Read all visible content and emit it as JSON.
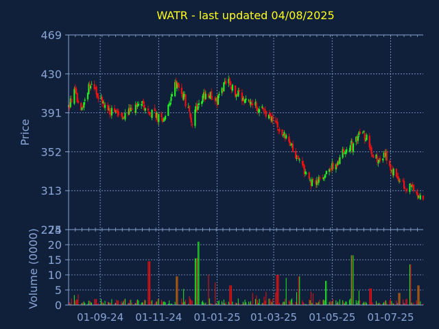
{
  "chart_data": {
    "type": "candlestick",
    "title": "WATR - last updated 04/08/2025",
    "colors": {
      "background": "#11203a",
      "up": "#22ee22",
      "down": "#ee1111",
      "axis": "#8aa6d6",
      "grid": "#8aa6d6",
      "title": "#ffff1a",
      "label": "#8aa6d6"
    },
    "price_panel": {
      "ylabel": "Price",
      "ylim": [
        274,
        469
      ],
      "yticks": [
        "469",
        "430",
        "391",
        "352",
        "313",
        "274"
      ],
      "tick_values": [
        469,
        430,
        391,
        352,
        313,
        274
      ],
      "grid": true
    },
    "volume_panel": {
      "ylabel": "Volume (0000)",
      "ylim": [
        0,
        25
      ],
      "yticks": [
        "25",
        "20",
        "15",
        "10",
        "5",
        "0"
      ],
      "tick_values": [
        25,
        20,
        15,
        10,
        5,
        0
      ],
      "grid": true
    },
    "x_axis": {
      "range": [
        "2024-07-30",
        "2025-08-04"
      ],
      "ticks": [
        {
          "label": "01-09-24",
          "date": "2024-09-01"
        },
        {
          "label": "01-11-24",
          "date": "2024-11-01"
        },
        {
          "label": "01-01-25",
          "date": "2025-01-01"
        },
        {
          "label": "01-03-25",
          "date": "2025-03-01"
        },
        {
          "label": "01-05-25",
          "date": "2025-05-01"
        },
        {
          "label": "01-07-25",
          "date": "2025-07-01"
        }
      ]
    },
    "price_path": [
      [
        "2024-07-30",
        396
      ],
      [
        "2024-08-05",
        412
      ],
      [
        "2024-08-12",
        395
      ],
      [
        "2024-08-20",
        418
      ],
      [
        "2024-08-28",
        410
      ],
      [
        "2024-09-05",
        400
      ],
      [
        "2024-09-15",
        390
      ],
      [
        "2024-09-25",
        386
      ],
      [
        "2024-10-05",
        395
      ],
      [
        "2024-10-15",
        398
      ],
      [
        "2024-10-25",
        390
      ],
      [
        "2024-11-05",
        383
      ],
      [
        "2024-11-15",
        405
      ],
      [
        "2024-11-20",
        425
      ],
      [
        "2024-11-28",
        405
      ],
      [
        "2024-12-05",
        382
      ],
      [
        "2024-12-12",
        398
      ],
      [
        "2024-12-20",
        410
      ],
      [
        "2025-01-01",
        403
      ],
      [
        "2025-01-07",
        415
      ],
      [
        "2025-01-12",
        424
      ],
      [
        "2025-01-20",
        410
      ],
      [
        "2025-01-30",
        405
      ],
      [
        "2025-02-10",
        398
      ],
      [
        "2025-02-20",
        393
      ],
      [
        "2025-03-01",
        380
      ],
      [
        "2025-03-10",
        370
      ],
      [
        "2025-03-20",
        355
      ],
      [
        "2025-03-28",
        345
      ],
      [
        "2025-04-08",
        320
      ],
      [
        "2025-04-15",
        325
      ],
      [
        "2025-04-25",
        330
      ],
      [
        "2025-05-05",
        340
      ],
      [
        "2025-05-15",
        355
      ],
      [
        "2025-05-25",
        360
      ],
      [
        "2025-06-01",
        375
      ],
      [
        "2025-06-08",
        360
      ],
      [
        "2025-06-15",
        345
      ],
      [
        "2025-06-25",
        348
      ],
      [
        "2025-07-05",
        330
      ],
      [
        "2025-07-15",
        318
      ],
      [
        "2025-07-25",
        316
      ],
      [
        "2025-08-04",
        302
      ]
    ],
    "avg_volume": 1.2,
    "volume_spikes": [
      [
        "2024-08-10",
        3.5
      ],
      [
        "2024-10-22",
        14.5
      ],
      [
        "2024-11-20",
        9.5
      ],
      [
        "2024-12-10",
        15.5
      ],
      [
        "2024-12-13",
        21
      ],
      [
        "2024-12-22",
        10
      ],
      [
        "2024-12-29",
        7.5
      ],
      [
        "2025-01-15",
        6.5
      ],
      [
        "2025-03-05",
        10
      ],
      [
        "2025-03-15",
        9
      ],
      [
        "2025-03-28",
        9.5
      ],
      [
        "2025-04-25",
        8
      ],
      [
        "2025-05-22",
        16.5
      ],
      [
        "2025-06-10",
        5.5
      ],
      [
        "2025-07-10",
        4
      ],
      [
        "2025-07-21",
        13.5
      ],
      [
        "2025-07-30",
        6.5
      ]
    ]
  }
}
